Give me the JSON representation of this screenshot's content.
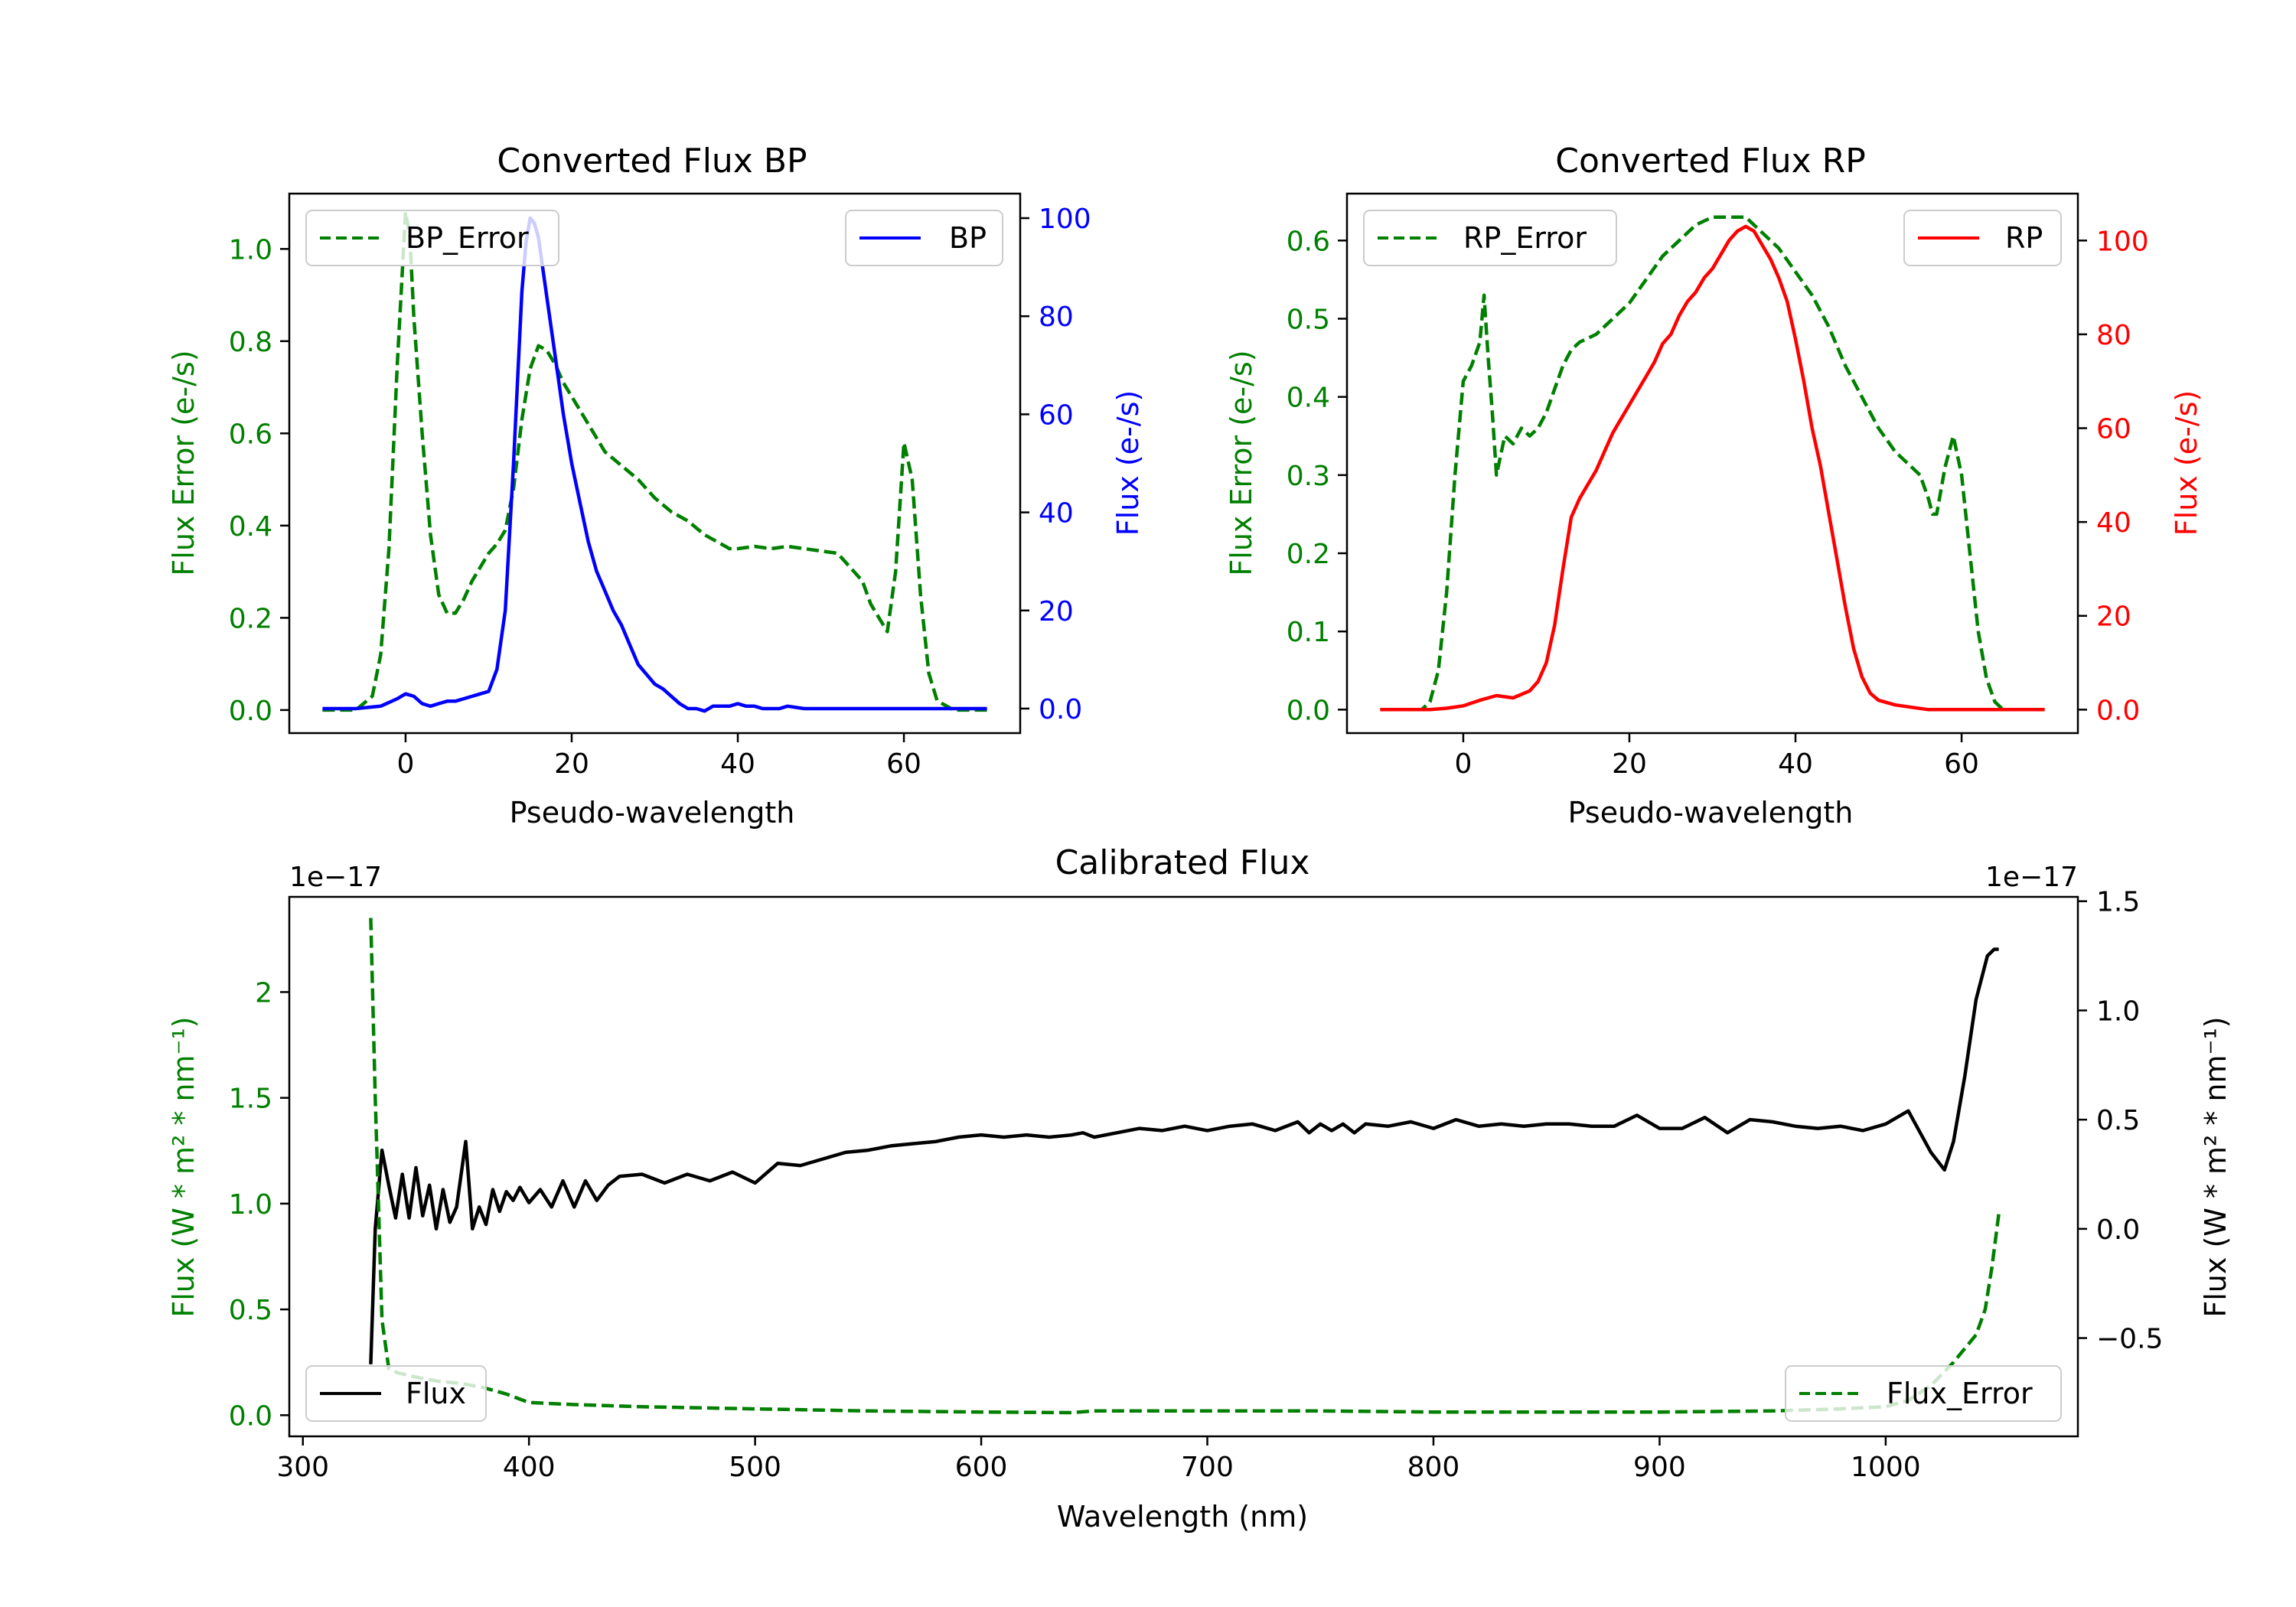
{
  "colors": {
    "green": "#008000",
    "blue": "#0000ff",
    "red": "#ff0000",
    "black": "#000000"
  },
  "chart_data": [
    {
      "id": "bp",
      "type": "line",
      "title": "Converted Flux BP",
      "xlabel": "Pseudo-wavelength",
      "ylabel_left": "Flux Error (e-/s)",
      "ylabel_right": "Flux (e-/s)",
      "xlim": [
        -14,
        74
      ],
      "ylim_left": [
        -0.05,
        1.12
      ],
      "ylim_right": [
        -5,
        105
      ],
      "xticks": [
        0,
        20,
        40,
        60
      ],
      "yticks_left": [
        0.0,
        0.2,
        0.4,
        0.6,
        0.8,
        1.0
      ],
      "yticks_right": [
        0,
        20,
        40,
        60,
        80,
        100
      ],
      "legend_left": {
        "label": "BP_Error",
        "position": "upper-left"
      },
      "legend_right": {
        "label": "BP",
        "position": "upper-right"
      },
      "series": [
        {
          "name": "BP_Error",
          "axis": "left",
          "color": "#008000",
          "style": "dashed",
          "x": [
            -10,
            -6,
            -4,
            -3,
            -2,
            -1,
            0,
            0.5,
            1,
            2,
            3,
            4,
            5,
            6,
            7,
            8,
            9,
            10,
            11,
            12,
            13,
            14,
            15,
            16,
            17,
            18,
            19,
            20,
            22,
            24,
            26,
            28,
            30,
            32,
            34,
            36,
            38,
            39,
            40,
            42,
            44,
            46,
            48,
            50,
            52,
            54,
            55,
            56,
            57,
            58,
            59,
            60,
            61,
            62,
            63,
            64,
            66,
            70
          ],
          "y": [
            0.0,
            0.0,
            0.03,
            0.12,
            0.35,
            0.75,
            1.08,
            1.03,
            0.85,
            0.6,
            0.38,
            0.25,
            0.21,
            0.21,
            0.24,
            0.28,
            0.31,
            0.34,
            0.36,
            0.39,
            0.48,
            0.63,
            0.74,
            0.79,
            0.78,
            0.75,
            0.71,
            0.68,
            0.62,
            0.56,
            0.53,
            0.5,
            0.46,
            0.43,
            0.41,
            0.38,
            0.36,
            0.35,
            0.35,
            0.355,
            0.35,
            0.355,
            0.35,
            0.345,
            0.34,
            0.3,
            0.28,
            0.23,
            0.2,
            0.17,
            0.3,
            0.58,
            0.5,
            0.25,
            0.08,
            0.02,
            0.0,
            0.0
          ]
        },
        {
          "name": "BP",
          "axis": "right",
          "color": "#0000ff",
          "style": "solid",
          "x": [
            -10,
            -6,
            -3,
            -1,
            0,
            1,
            2,
            3,
            4,
            5,
            6,
            7,
            8,
            9,
            10,
            11,
            12,
            13,
            14,
            14.5,
            15,
            15.5,
            16,
            17,
            18,
            19,
            20,
            21,
            22,
            23,
            24,
            25,
            26,
            27,
            28,
            29,
            30,
            31,
            32,
            33,
            34,
            35,
            36,
            37,
            38,
            39,
            40,
            41,
            42,
            43,
            44,
            45,
            46,
            48,
            50,
            52,
            54,
            56,
            58,
            60,
            62,
            66,
            70
          ],
          "y": [
            0,
            0,
            0.5,
            2,
            3,
            2.5,
            1,
            0.5,
            1,
            1.5,
            1.5,
            2,
            2.5,
            3,
            3.5,
            8,
            20,
            50,
            85,
            95,
            100,
            99,
            96,
            84,
            72,
            60,
            50,
            42,
            34,
            28,
            24,
            20,
            17,
            13,
            9,
            7,
            5,
            4,
            2.5,
            1,
            0,
            0,
            -0.5,
            0.5,
            0.5,
            0.5,
            1,
            0.5,
            0.5,
            0,
            0,
            0,
            0.5,
            0,
            0,
            0,
            0,
            0,
            0,
            0,
            0,
            0,
            0
          ]
        }
      ]
    },
    {
      "id": "rp",
      "type": "line",
      "title": "Converted Flux RP",
      "xlabel": "Pseudo-wavelength",
      "ylabel_left": "Flux Error (e-/s)",
      "ylabel_right": "Flux (e-/s)",
      "xlim": [
        -14,
        74
      ],
      "ylim_left": [
        -0.03,
        0.66
      ],
      "ylim_right": [
        -5,
        110
      ],
      "xticks": [
        0,
        20,
        40,
        60
      ],
      "yticks_left": [
        0.0,
        0.1,
        0.2,
        0.3,
        0.4,
        0.5,
        0.6
      ],
      "yticks_right": [
        0,
        20,
        40,
        60,
        80,
        100
      ],
      "legend_left": {
        "label": "RP_Error",
        "position": "upper-left"
      },
      "legend_right": {
        "label": "RP",
        "position": "upper-right"
      },
      "series": [
        {
          "name": "RP_Error",
          "axis": "left",
          "color": "#008000",
          "style": "dashed",
          "x": [
            -10,
            -5,
            -4,
            -3,
            -2,
            -1,
            0,
            1,
            2,
            2.5,
            3,
            3.5,
            4,
            5,
            6,
            7,
            8,
            9,
            10,
            11,
            12,
            13,
            14,
            16,
            18,
            20,
            22,
            24,
            26,
            28,
            30,
            32,
            34,
            36,
            38,
            40,
            42,
            44,
            46,
            48,
            50,
            52,
            53,
            54,
            55,
            56,
            56.5,
            57,
            58,
            59,
            60,
            61,
            62,
            63,
            64,
            65,
            70
          ],
          "y": [
            0.0,
            0.0,
            0.01,
            0.05,
            0.15,
            0.3,
            0.42,
            0.44,
            0.47,
            0.53,
            0.45,
            0.38,
            0.3,
            0.35,
            0.34,
            0.36,
            0.35,
            0.36,
            0.38,
            0.41,
            0.44,
            0.46,
            0.47,
            0.48,
            0.5,
            0.52,
            0.55,
            0.58,
            0.6,
            0.62,
            0.63,
            0.63,
            0.63,
            0.61,
            0.59,
            0.56,
            0.53,
            0.49,
            0.44,
            0.4,
            0.36,
            0.33,
            0.32,
            0.31,
            0.3,
            0.27,
            0.25,
            0.25,
            0.31,
            0.35,
            0.3,
            0.2,
            0.1,
            0.04,
            0.01,
            0.0,
            0.0
          ]
        },
        {
          "name": "RP",
          "axis": "right",
          "color": "#ff0000",
          "style": "solid",
          "x": [
            -10,
            -4,
            -2,
            0,
            2,
            4,
            6,
            8,
            9,
            10,
            11,
            12,
            13,
            14,
            15,
            16,
            17,
            18,
            19,
            20,
            21,
            22,
            23,
            24,
            25,
            26,
            27,
            28,
            29,
            30,
            31,
            32,
            33,
            34,
            35,
            36,
            37,
            38,
            39,
            40,
            41,
            42,
            43,
            44,
            45,
            46,
            47,
            48,
            49,
            50,
            52,
            54,
            56,
            58,
            60,
            62,
            64,
            66,
            70
          ],
          "y": [
            0,
            0,
            0.3,
            0.8,
            2,
            3,
            2.5,
            4,
            6,
            10,
            18,
            30,
            41,
            45,
            48,
            51,
            55,
            59,
            62,
            65,
            68,
            71,
            74,
            78,
            80,
            84,
            87,
            89,
            92,
            94,
            97,
            100,
            102,
            103,
            102,
            99,
            96,
            92,
            87,
            79,
            70,
            60,
            52,
            42,
            32,
            22,
            13,
            7,
            3.5,
            2,
            1,
            0.5,
            0,
            0,
            0,
            0,
            0,
            0,
            0
          ]
        }
      ]
    },
    {
      "id": "cal",
      "type": "line",
      "title": "Calibrated Flux",
      "xlabel": "Wavelength (nm)",
      "ylabel_left": "Flux (W * m² * nm⁻¹)",
      "ylabel_right": "Flux (W * m² * nm⁻¹)",
      "offset_left": "1e−17",
      "offset_right": "1e−17",
      "xlim": [
        294,
        1085
      ],
      "ylim_left": [
        -0.1,
        2.45
      ],
      "ylim_right": [
        -0.95,
        1.52
      ],
      "xticks": [
        300,
        400,
        500,
        600,
        700,
        800,
        900,
        1000
      ],
      "yticks_left": [
        0.0,
        0.5,
        1.0,
        1.5,
        2.0
      ],
      "yticks_right": [
        -0.5,
        0.0,
        0.5,
        1.0,
        1.5
      ],
      "legend_left": {
        "label": "Flux",
        "position": "lower-left"
      },
      "legend_right": {
        "label": "Flux_Error",
        "position": "lower-right"
      },
      "series": [
        {
          "name": "Flux",
          "axis": "right",
          "color": "#000000",
          "style": "solid",
          "x": [
            330,
            332,
            335,
            338,
            341,
            344,
            347,
            350,
            353,
            356,
            359,
            362,
            365,
            368,
            372,
            375,
            378,
            381,
            384,
            387,
            390,
            393,
            396,
            400,
            405,
            410,
            415,
            420,
            425,
            430,
            435,
            440,
            450,
            460,
            470,
            480,
            490,
            500,
            510,
            520,
            530,
            540,
            550,
            560,
            570,
            580,
            590,
            600,
            610,
            620,
            630,
            640,
            645,
            650,
            660,
            670,
            680,
            690,
            700,
            710,
            720,
            730,
            740,
            745,
            750,
            755,
            760,
            765,
            770,
            780,
            790,
            800,
            810,
            820,
            830,
            840,
            850,
            860,
            870,
            880,
            890,
            900,
            910,
            920,
            930,
            940,
            950,
            960,
            970,
            980,
            990,
            1000,
            1010,
            1020,
            1026,
            1030,
            1035,
            1040,
            1045,
            1048,
            1050
          ],
          "y": [
            -0.62,
            0.0,
            0.36,
            0.2,
            0.05,
            0.25,
            0.05,
            0.28,
            0.06,
            0.2,
            0.0,
            0.18,
            0.03,
            0.1,
            0.4,
            0.0,
            0.1,
            0.02,
            0.18,
            0.08,
            0.17,
            0.13,
            0.19,
            0.12,
            0.18,
            0.1,
            0.22,
            0.1,
            0.22,
            0.13,
            0.2,
            0.24,
            0.25,
            0.21,
            0.25,
            0.22,
            0.26,
            0.21,
            0.3,
            0.29,
            0.32,
            0.35,
            0.36,
            0.38,
            0.39,
            0.4,
            0.42,
            0.43,
            0.42,
            0.43,
            0.42,
            0.43,
            0.44,
            0.42,
            0.44,
            0.46,
            0.45,
            0.47,
            0.45,
            0.47,
            0.48,
            0.45,
            0.49,
            0.44,
            0.48,
            0.45,
            0.48,
            0.44,
            0.48,
            0.47,
            0.49,
            0.46,
            0.5,
            0.47,
            0.48,
            0.47,
            0.48,
            0.48,
            0.47,
            0.47,
            0.52,
            0.46,
            0.46,
            0.51,
            0.44,
            0.5,
            0.49,
            0.47,
            0.46,
            0.47,
            0.45,
            0.48,
            0.54,
            0.35,
            0.27,
            0.4,
            0.7,
            1.05,
            1.25,
            1.28,
            1.28
          ]
        },
        {
          "name": "Flux_Error",
          "axis": "left",
          "color": "#008000",
          "style": "dashed",
          "x": [
            330,
            332,
            335,
            338,
            342,
            346,
            350,
            360,
            370,
            380,
            390,
            400,
            420,
            450,
            500,
            550,
            600,
            640,
            650,
            700,
            750,
            800,
            850,
            900,
            950,
            980,
            1000,
            1010,
            1020,
            1030,
            1040,
            1044,
            1047,
            1050
          ],
          "y": [
            2.35,
            1.5,
            0.45,
            0.22,
            0.2,
            0.19,
            0.18,
            0.16,
            0.15,
            0.13,
            0.1,
            0.06,
            0.05,
            0.04,
            0.03,
            0.02,
            0.015,
            0.012,
            0.02,
            0.02,
            0.02,
            0.015,
            0.015,
            0.015,
            0.02,
            0.03,
            0.04,
            0.07,
            0.14,
            0.25,
            0.38,
            0.5,
            0.7,
            0.95
          ]
        }
      ]
    }
  ]
}
